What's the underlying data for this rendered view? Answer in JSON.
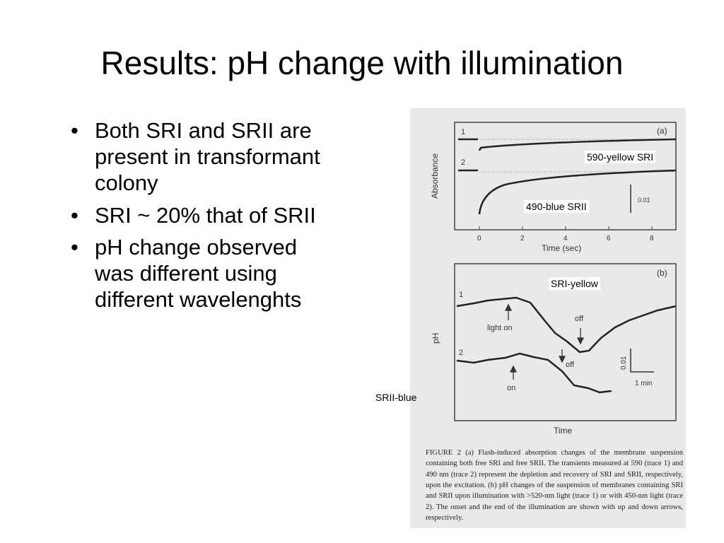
{
  "slide": {
    "title": "Results: pH change with illumination",
    "bullets": [
      "Both SRI and SRII are present in transformant colony",
      "SRI ~ 20% that of SRII",
      "pH change observed was different using different wavelenghts"
    ]
  },
  "figure": {
    "panel_a": {
      "panel_label": "(a)",
      "trace1_label": "1",
      "trace2_label": "2",
      "ylabel": "Absorbance",
      "xlabel": "Time (sec)",
      "x_ticks": [
        "0",
        "2",
        "4",
        "6",
        "8"
      ],
      "scale_label": "0.01",
      "annot_sri": "590-yellow SRI",
      "annot_srii": "490-blue SRII"
    },
    "panel_b": {
      "panel_label": "(b)",
      "trace1_label": "1",
      "trace2_label": "2",
      "ylabel": "pH",
      "xlabel": "Time",
      "light_on": "light on",
      "off1": "off",
      "on2": "on",
      "off2": "off",
      "scale_y": "0.01",
      "scale_x": "1 min",
      "annot_sri": "SRI-yellow",
      "annot_srii": "SRII-blue"
    },
    "caption": {
      "figure_label": "FIGURE 2",
      "text": "(a) Flash-induced absorption changes of the membrane suspension containing both free SRI and free SRII. The transients measured at 590 (trace 1) and 490 nm (trace 2) represent the depletion and recovery of SRI and SRII, respectively, upon the excitation. (b) pH changes of the suspension of membranes containing SRI and SRII upon illumination with >520-nm light (trace 1) or with 450-nm light (trace 2). The onset and the end of the illumination are shown with up and down arrows, respectively."
    }
  }
}
